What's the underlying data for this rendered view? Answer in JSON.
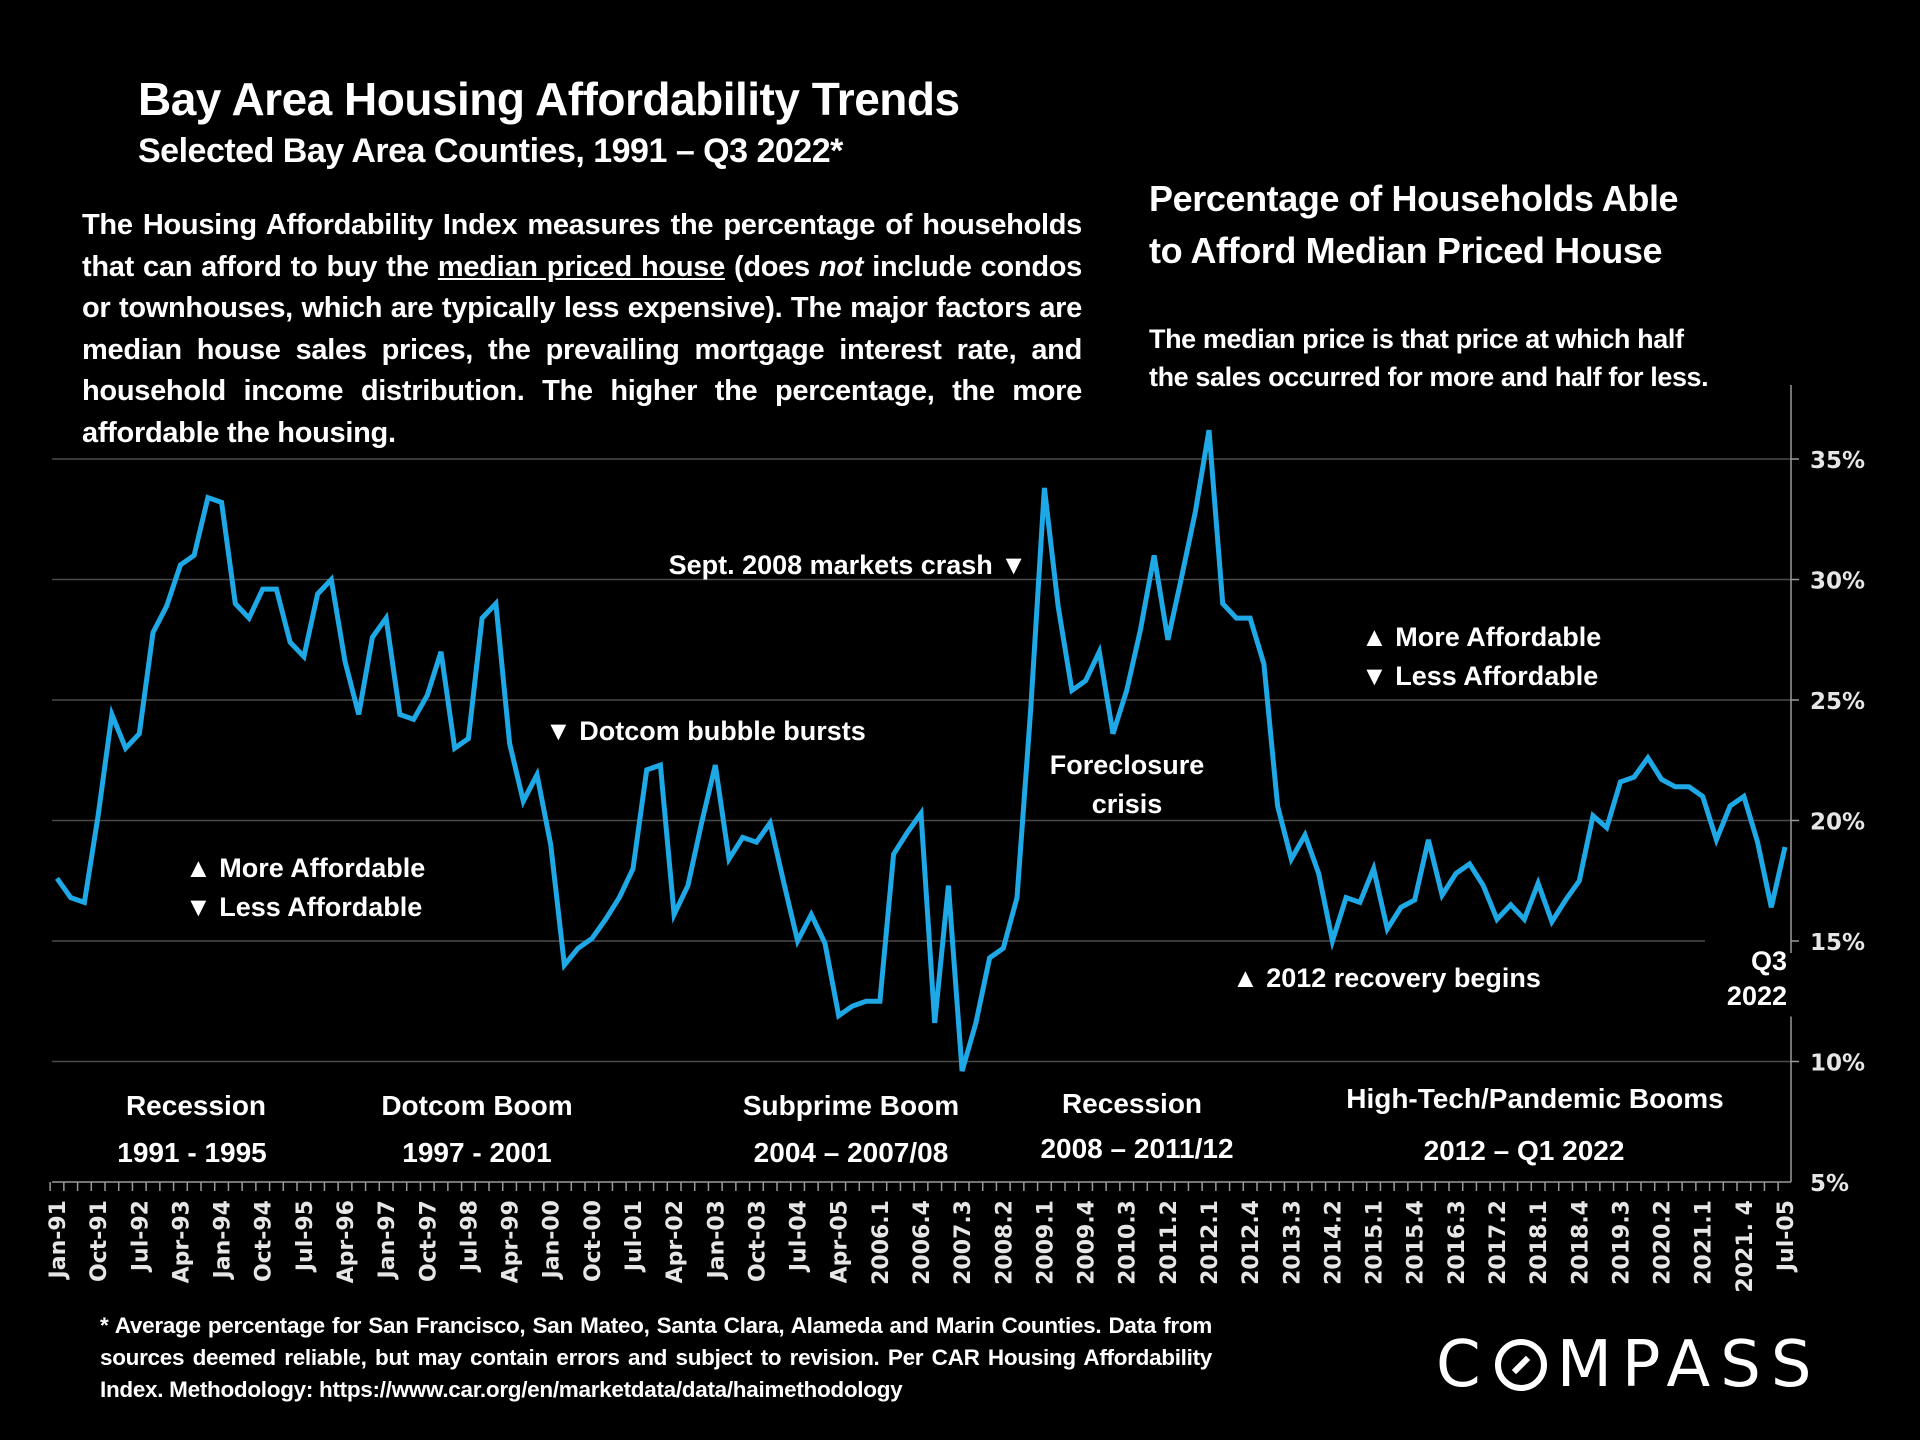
{
  "header": {
    "title": "Bay Area Housing Affordability Trends",
    "subtitle": "Selected Bay Area Counties, 1991 – Q3 2022*"
  },
  "description": {
    "part1": "The Housing Affordability Index measures the percentage of households that can afford to buy the ",
    "underlined": "median priced house",
    "part2": " (does ",
    "italic": "not",
    "part3": " include condos or townhouses, which are typically less expensive). The major factors are median house sales prices, the prevailing mortgage interest rate, and household income distribution. The higher the percentage, the more affordable the housing."
  },
  "chart_title": {
    "line1": "Percentage of Households Able",
    "line2": "to Afford Median Priced House"
  },
  "median_note": {
    "line1": "The median price is that price at which half",
    "line2": "the sales occurred for more and half for less."
  },
  "footnote": "* Average percentage for San Francisco, San Mateo, Santa Clara, Alameda and Marin Counties. Data from sources deemed reliable, but may contain errors and subject to revision. Per CAR Housing Affordability Index. Methodology: https://www.car.org/en/marketdata/data/haimethodology",
  "logo": {
    "pre": "C",
    "post": "MPASS"
  },
  "colors": {
    "line": "#1EA8E6",
    "background": "#000000",
    "grid": "#4a4a4a",
    "text": "#ffffff"
  },
  "chart_data": {
    "type": "line",
    "title": "Percentage of Households Able to Afford Median Priced House",
    "xlabel": "",
    "ylabel": "",
    "ylim": [
      5,
      35
    ],
    "y_ticks": [
      "5%",
      "10%",
      "15%",
      "20%",
      "25%",
      "30%",
      "35%"
    ],
    "y_tick_values": [
      5,
      10,
      15,
      20,
      25,
      30,
      35
    ],
    "grid": true,
    "y_axis_position": "right",
    "x_tick_labels": [
      "Jan-91",
      "Oct-91",
      "Jul-92",
      "Apr-93",
      "Jan-94",
      "Oct-94",
      "Jul-95",
      "Apr-96",
      "Jan-97",
      "Oct-97",
      "Jul-98",
      "Apr-99",
      "Jan-00",
      "Oct-00",
      "Jul-01",
      "Apr-02",
      "Jan-03",
      "Oct-03",
      "Jul-04",
      "Apr-05",
      "2006.1",
      "2006.4",
      "2007.3",
      "2008.2",
      "2009.1",
      "2009.4",
      "2010.3",
      "2011.2",
      "2012.1",
      "2012.4",
      "2013.3",
      "2014.2",
      "2015.1",
      "2015.4",
      "2016.3",
      "2017.2",
      "2018.1",
      "2018.4",
      "2019.3",
      "2020.2",
      "2021.1",
      "2021. 4",
      "Jul-05"
    ],
    "x_tick_every": 3,
    "series": [
      {
        "name": "Bay Area Housing Affordability Index",
        "frequency": "quarterly",
        "start": "1991 Q1",
        "end": "2022 Q3",
        "values": [
          17.6,
          16.8,
          16.6,
          20.2,
          24.4,
          23.0,
          23.6,
          27.8,
          28.9,
          30.6,
          31.0,
          33.4,
          33.2,
          29.0,
          28.4,
          29.6,
          29.6,
          27.4,
          26.8,
          29.4,
          30.0,
          26.6,
          24.4,
          27.6,
          28.4,
          24.4,
          24.2,
          25.2,
          27.0,
          23.0,
          23.4,
          28.4,
          29.0,
          23.2,
          20.8,
          21.9,
          19.0,
          14.0,
          14.7,
          15.1,
          15.9,
          16.8,
          18.0,
          22.1,
          22.3,
          16.1,
          17.3,
          19.9,
          22.3,
          18.4,
          19.3,
          19.1,
          19.9,
          17.4,
          15.0,
          16.1,
          14.9,
          11.9,
          12.3,
          12.5,
          12.5,
          18.6,
          19.5,
          20.3,
          11.6,
          17.3,
          9.6,
          11.6,
          14.3,
          14.7,
          16.8,
          24.6,
          33.8,
          28.9,
          25.4,
          25.8,
          27.0,
          23.6,
          25.4,
          27.9,
          31.0,
          27.5,
          30.1,
          32.8,
          36.2,
          29.0,
          28.4,
          28.4,
          26.5,
          20.6,
          18.4,
          19.4,
          17.8,
          15.0,
          16.8,
          16.6,
          18.0,
          15.5,
          16.4,
          16.7,
          19.2,
          16.9,
          17.8,
          18.2,
          17.3,
          15.9,
          16.5,
          15.9,
          17.4,
          15.8,
          16.7,
          17.5,
          20.2,
          19.7,
          21.6,
          21.8,
          22.6,
          21.7,
          21.4,
          21.4,
          21.0,
          19.2,
          20.6,
          21.0,
          19.1,
          16.4,
          18.9
        ]
      }
    ],
    "annotations": [
      {
        "text": "▲ More Affordable",
        "position": "left"
      },
      {
        "text": "▼ Less Affordable",
        "position": "left"
      },
      {
        "text": "▼ Dotcom bubble bursts"
      },
      {
        "text": "Sept. 2008 markets crash ▼"
      },
      {
        "text": "Foreclosure"
      },
      {
        "text": "crisis"
      },
      {
        "text": "▲ More Affordable",
        "position": "right"
      },
      {
        "text": "▼ Less Affordable",
        "position": "right"
      },
      {
        "text": "▲ 2012 recovery begins"
      },
      {
        "text": "Q3"
      },
      {
        "text": "2022"
      }
    ],
    "periods": [
      {
        "name": "Recession",
        "range": "1991 - 1995"
      },
      {
        "name": "Dotcom Boom",
        "range": "1997 - 2001"
      },
      {
        "name": "Subprime Boom",
        "range": "2004 – 2007/08"
      },
      {
        "name": "Recession",
        "range": "2008 – 2011/12"
      },
      {
        "name": "High-Tech/Pandemic Booms",
        "range": "2012 – Q1 2022"
      }
    ]
  }
}
